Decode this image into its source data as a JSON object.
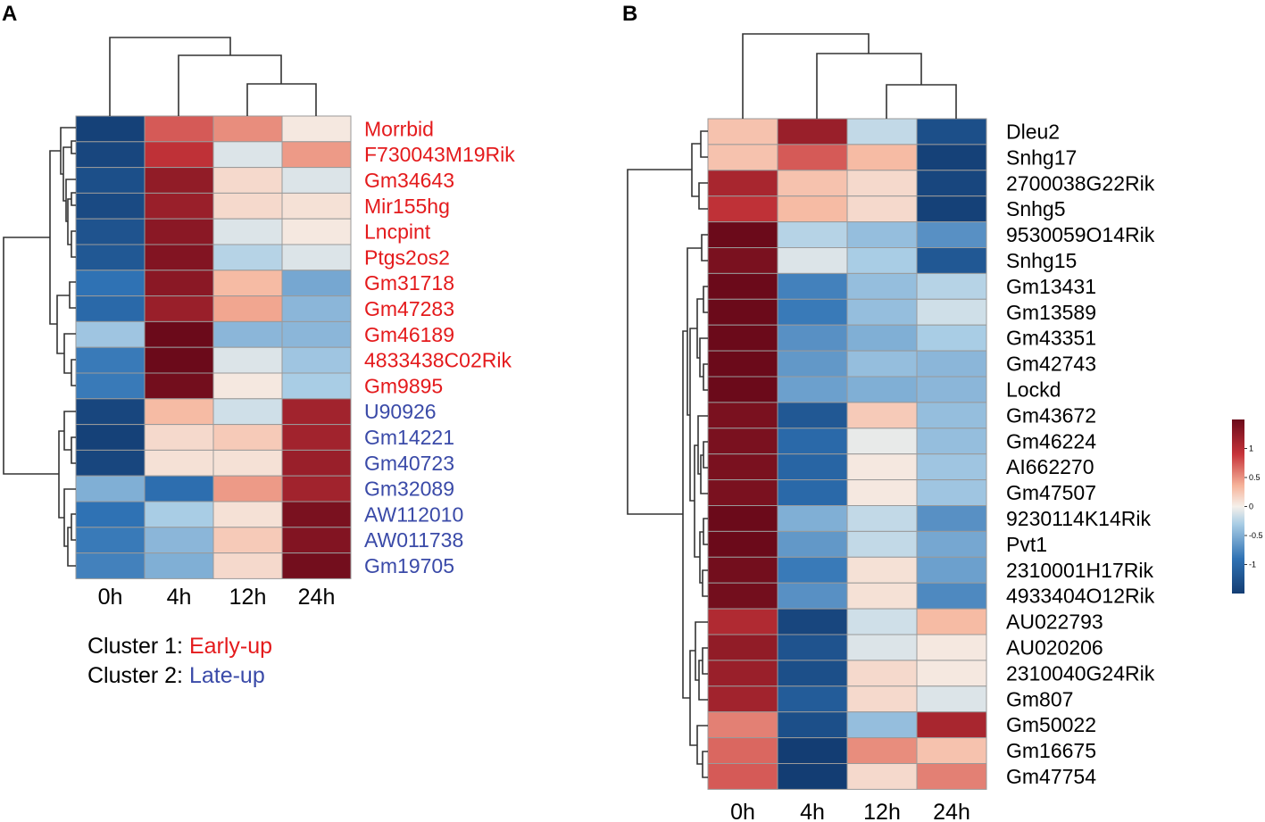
{
  "colors": {
    "cluster1": "#e41a1c",
    "cluster2": "#3a4aa8",
    "low": "#133d73",
    "mid": "#f5f0ea",
    "high": "#6b0a1a"
  },
  "chart_data": [
    {
      "type": "heatmap",
      "panel": "A",
      "columns": [
        "0h",
        "4h",
        "12h",
        "24h"
      ],
      "rows": [
        {
          "label": "Morrbid",
          "cluster": 1,
          "values": [
            -1.45,
            0.75,
            0.55,
            0.05
          ]
        },
        {
          "label": "F730043M19Rik",
          "cluster": 1,
          "values": [
            -1.4,
            0.95,
            -0.1,
            0.5
          ]
        },
        {
          "label": "Gm34643",
          "cluster": 1,
          "values": [
            -1.3,
            1.25,
            0.15,
            -0.1
          ]
        },
        {
          "label": "Mir155hg",
          "cluster": 1,
          "values": [
            -1.35,
            1.2,
            0.15,
            0.1
          ]
        },
        {
          "label": "Lncpint",
          "cluster": 1,
          "values": [
            -1.25,
            1.3,
            -0.1,
            0.05
          ]
        },
        {
          "label": "Ptgs2os2",
          "cluster": 1,
          "values": [
            -1.2,
            1.35,
            -0.25,
            -0.1
          ]
        },
        {
          "label": "Gm31718",
          "cluster": 1,
          "values": [
            -0.9,
            1.3,
            0.35,
            -0.55
          ]
        },
        {
          "label": "Gm47283",
          "cluster": 1,
          "values": [
            -1.0,
            1.2,
            0.45,
            -0.45
          ]
        },
        {
          "label": "Gm46189",
          "cluster": 1,
          "values": [
            -0.35,
            1.55,
            -0.45,
            -0.45
          ]
        },
        {
          "label": "4833438C02Rik",
          "cluster": 1,
          "values": [
            -0.85,
            1.5,
            -0.1,
            -0.35
          ]
        },
        {
          "label": "Gm9895",
          "cluster": 1,
          "values": [
            -0.85,
            1.45,
            0.05,
            -0.3
          ]
        },
        {
          "label": "U90926",
          "cluster": 2,
          "values": [
            -1.4,
            0.35,
            -0.15,
            1.15
          ]
        },
        {
          "label": "Gm14221",
          "cluster": 2,
          "values": [
            -1.45,
            0.15,
            0.25,
            1.15
          ]
        },
        {
          "label": "Gm40723",
          "cluster": 2,
          "values": [
            -1.4,
            0.1,
            0.1,
            1.2
          ]
        },
        {
          "label": "Gm32089",
          "cluster": 2,
          "values": [
            -0.5,
            -0.95,
            0.5,
            1.15
          ]
        },
        {
          "label": "AW112010",
          "cluster": 2,
          "values": [
            -0.9,
            -0.3,
            0.1,
            1.4
          ]
        },
        {
          "label": "AW011738",
          "cluster": 2,
          "values": [
            -0.85,
            -0.45,
            0.25,
            1.35
          ]
        },
        {
          "label": "Gm19705",
          "cluster": 2,
          "values": [
            -0.8,
            -0.5,
            0.15,
            1.45
          ]
        }
      ],
      "legend": [
        {
          "prefix": "Cluster 1: ",
          "label": "Early-up"
        },
        {
          "prefix": "Cluster 2: ",
          "label": "Late-up"
        }
      ]
    },
    {
      "type": "heatmap",
      "panel": "B",
      "columns": [
        "0h",
        "4h",
        "12h",
        "24h"
      ],
      "rows": [
        {
          "label": "Dleu2",
          "values": [
            0.3,
            1.2,
            -0.2,
            -1.3
          ]
        },
        {
          "label": "Snhg17",
          "values": [
            0.3,
            0.75,
            0.35,
            -1.45
          ]
        },
        {
          "label": "2700038G22Rik",
          "values": [
            1.1,
            0.3,
            0.15,
            -1.4
          ]
        },
        {
          "label": "Snhg5",
          "values": [
            0.95,
            0.35,
            0.15,
            -1.45
          ]
        },
        {
          "label": "9530059O14Rik",
          "values": [
            1.5,
            -0.25,
            -0.4,
            -0.7
          ]
        },
        {
          "label": "Snhg15",
          "values": [
            1.4,
            -0.1,
            -0.3,
            -1.2
          ]
        },
        {
          "label": "Gm13431",
          "values": [
            1.5,
            -0.8,
            -0.4,
            -0.25
          ]
        },
        {
          "label": "Gm13589",
          "values": [
            1.5,
            -0.85,
            -0.4,
            -0.15
          ]
        },
        {
          "label": "Gm43351",
          "values": [
            1.55,
            -0.7,
            -0.5,
            -0.3
          ]
        },
        {
          "label": "Gm42743",
          "values": [
            1.55,
            -0.65,
            -0.4,
            -0.45
          ]
        },
        {
          "label": "Lockd",
          "values": [
            1.55,
            -0.6,
            -0.5,
            -0.45
          ]
        },
        {
          "label": "Gm43672",
          "values": [
            1.4,
            -1.2,
            0.25,
            -0.4
          ]
        },
        {
          "label": "Gm46224",
          "values": [
            1.4,
            -1.0,
            -0.05,
            -0.4
          ]
        },
        {
          "label": "AI662270",
          "values": [
            1.4,
            -1.05,
            0.05,
            -0.35
          ]
        },
        {
          "label": "Gm47507",
          "values": [
            1.4,
            -1.0,
            0.05,
            -0.35
          ]
        },
        {
          "label": "9230114K14Rik",
          "values": [
            1.5,
            -0.5,
            -0.2,
            -0.7
          ]
        },
        {
          "label": "Pvt1",
          "values": [
            1.5,
            -0.65,
            -0.2,
            -0.55
          ]
        },
        {
          "label": "2310001H17Rik",
          "values": [
            1.45,
            -0.85,
            0.1,
            -0.6
          ]
        },
        {
          "label": "4933404O12Rik",
          "values": [
            1.45,
            -0.7,
            0.1,
            -0.75
          ]
        },
        {
          "label": "AU022793",
          "values": [
            1.05,
            -1.4,
            -0.15,
            0.35
          ]
        },
        {
          "label": "AU020206",
          "values": [
            1.25,
            -1.25,
            -0.1,
            0.05
          ]
        },
        {
          "label": "2310040G24Rik",
          "values": [
            1.2,
            -1.3,
            0.15,
            0.05
          ]
        },
        {
          "label": "Gm807",
          "values": [
            1.15,
            -1.15,
            0.15,
            -0.1
          ]
        },
        {
          "label": "Gm50022",
          "values": [
            0.6,
            -1.3,
            -0.4,
            1.1
          ]
        },
        {
          "label": "Gm16675",
          "values": [
            0.7,
            -1.55,
            0.55,
            0.3
          ]
        },
        {
          "label": "Gm47754",
          "values": [
            0.75,
            -1.55,
            0.15,
            0.6
          ]
        }
      ],
      "scale": {
        "min": -1.5,
        "max": 1.5,
        "ticks": [
          "1",
          "0.5",
          "0",
          "-0.5",
          "-1"
        ],
        "tick_values": [
          1,
          0.5,
          0,
          -0.5,
          -1
        ]
      }
    }
  ],
  "panels": {
    "a_letter": "A",
    "b_letter": "B"
  }
}
